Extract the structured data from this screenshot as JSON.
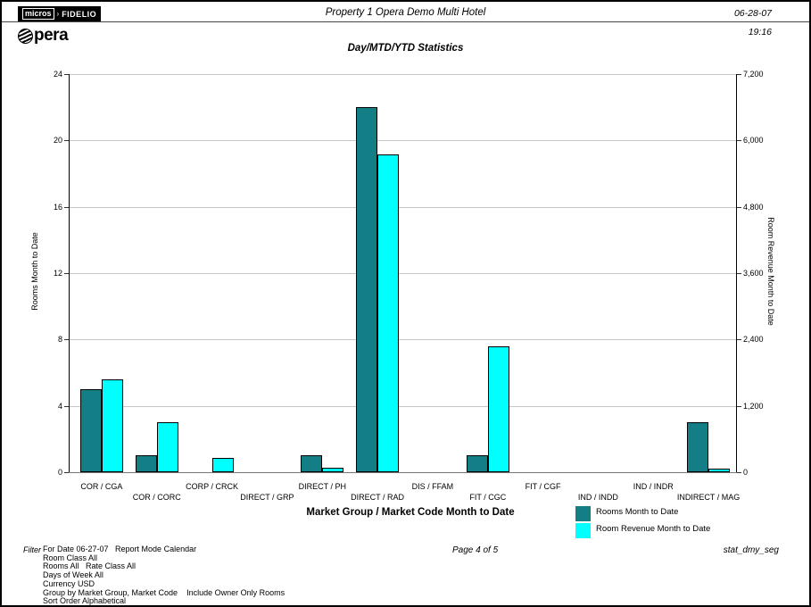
{
  "header": {
    "logo_badge_left": "micros",
    "logo_badge_sep": "›",
    "logo_badge_right": "FIDELIO",
    "logo_name": "Opera",
    "logo_name_rest": "pera",
    "title": "Property 1 Opera Demo Multi Hotel",
    "date": "06-28-07",
    "time": "19:16",
    "subtitle": "Day/MTD/YTD Statistics"
  },
  "chart_data": {
    "type": "bar",
    "title": "Day/MTD/YTD Statistics",
    "categories": [
      "COR / CGA",
      "COR / CORC",
      "CORP / CRCK",
      "DIRECT / GRP",
      "DIRECT / PH",
      "DIRECT / RAD",
      "DIS / FFAM",
      "FIT / CGC",
      "FIT / CGF",
      "IND / INDD",
      "IND / INDR",
      "INDIRECT / MAG"
    ],
    "series": [
      {
        "name": "Rooms Month to Date",
        "axis": "left",
        "color": "#147e86",
        "values": [
          5,
          1,
          0,
          0,
          1,
          22,
          0,
          1,
          0,
          0,
          0,
          3
        ]
      },
      {
        "name": "Room Revenue Month to Date",
        "axis": "right",
        "color": "#00ffff",
        "values": [
          1680,
          910,
          260,
          0,
          75,
          5740,
          0,
          2270,
          0,
          0,
          0,
          70
        ]
      }
    ],
    "left_axis": {
      "label": "Rooms Month to Date",
      "min": 0,
      "max": 24,
      "step": 4,
      "ticks": [
        "0",
        "4",
        "8",
        "12",
        "16",
        "20",
        "24"
      ]
    },
    "right_axis": {
      "label": "Room Revenue Month to Date",
      "min": 0,
      "max": 7200,
      "step": 1200,
      "ticks": [
        "0",
        "1,200",
        "2,400",
        "3,600",
        "4,800",
        "6,000",
        "7,200"
      ]
    },
    "xlabel": "Market Group / Market Code Month to Date",
    "grid": "horizontal",
    "legend_position": "bottom-right",
    "grid_color": "#c6c6c6"
  },
  "legend": {
    "items": [
      {
        "label": "Rooms Month to Date",
        "color": "#147e86"
      },
      {
        "label": "Room Revenue Month to Date",
        "color": "#00ffff"
      }
    ]
  },
  "footer": {
    "filter_label": "Filter",
    "filter_lines": [
      "For Date 06-27-07   Report Mode Calendar",
      "Room Class All",
      "Rooms All   Rate Class All",
      "Days of Week All",
      "Currency USD",
      "Group by Market Group, Market Code    Include Owner Only Rooms",
      "Sort Order Alphabetical"
    ],
    "page": "Page 4 of 5",
    "report_id": "stat_dmy_seg"
  }
}
